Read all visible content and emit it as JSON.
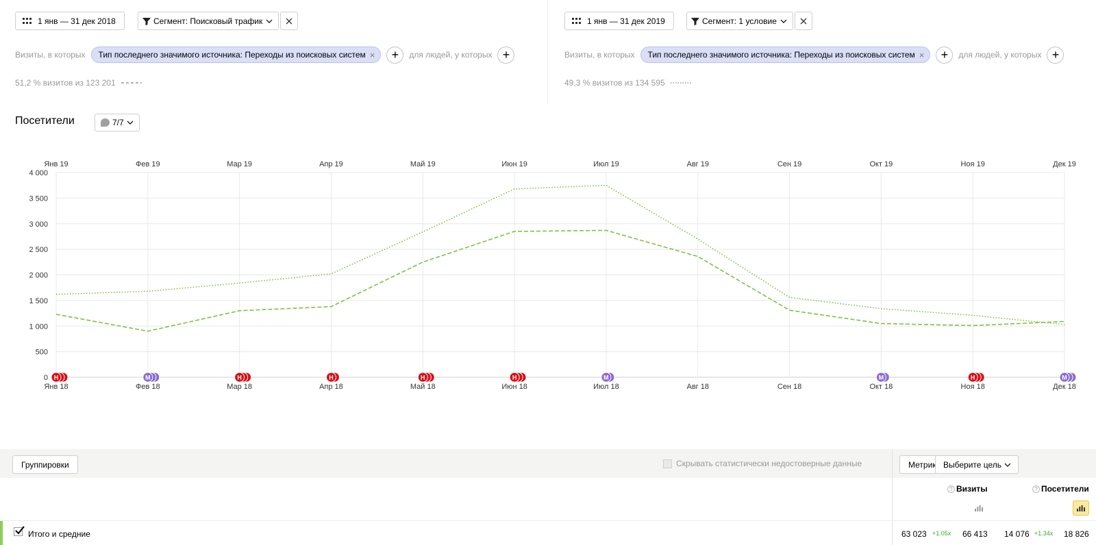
{
  "segments": [
    {
      "date_range": "1 янв — 31 дек 2018",
      "segment_label": "Сегмент: Поисковый трафик",
      "visits_prefix": "Визиты, в которых",
      "condition_chip": "Тип последнего значимого источника: Переходы из поисковых систем",
      "people_label": "для людей, у которых",
      "stat": "51,2 % визитов из 123 201",
      "line_style": "dashed"
    },
    {
      "date_range": "1 янв — 31 дек 2019",
      "segment_label": "Сегмент: 1 условие",
      "visits_prefix": "Визиты, в которых",
      "condition_chip": "Тип последнего значимого источника: Переходы из поисковых систем",
      "people_label": "для людей, у которых",
      "stat": "49,3 % визитов из 134 595",
      "line_style": "dotted"
    }
  ],
  "chart_header": {
    "title": "Посетители",
    "notes_count": "7/7"
  },
  "chart_data": {
    "type": "line",
    "x_top": [
      "Янв 19",
      "Фев 19",
      "Мар 19",
      "Апр 19",
      "Май 19",
      "Июн 19",
      "Июл 19",
      "Авг 19",
      "Сен 19",
      "Окт 19",
      "Ноя 19",
      "Дек 19"
    ],
    "x_bottom": [
      "Янв 18",
      "Фев 18",
      "Мар 18",
      "Апр 18",
      "Май 18",
      "Июн 18",
      "Июл 18",
      "Авг 18",
      "Сен 18",
      "Окт 18",
      "Ноя 18",
      "Дек 18"
    ],
    "y_ticks": [
      "0",
      "500",
      "1 000",
      "1 500",
      "2 000",
      "2 500",
      "3 000",
      "3 500",
      "4 000"
    ],
    "ylim": [
      0,
      4000
    ],
    "grid": true,
    "series": [
      {
        "values": [
          1230,
          900,
          1300,
          1380,
          2250,
          2850,
          2870,
          2360,
          1310,
          1050,
          1010,
          1090
        ],
        "style": "dashed",
        "color": "#7cc242"
      },
      {
        "values": [
          1620,
          1680,
          1840,
          2020,
          2840,
          3680,
          3750,
          2700,
          1560,
          1340,
          1210,
          1030
        ],
        "style": "dotted",
        "color": "#7cc242"
      }
    ],
    "annotations": [
      {
        "index": 0,
        "letter": "Н",
        "count": 3,
        "color": "#d80f16"
      },
      {
        "index": 1,
        "letter": "М",
        "count": 3,
        "color": "#8a6bd0"
      },
      {
        "index": 2,
        "letter": "Н",
        "count": 3,
        "color": "#d80f16"
      },
      {
        "index": 3,
        "letter": "Н",
        "count": 2,
        "color": "#d80f16"
      },
      {
        "index": 4,
        "letter": "Н",
        "count": 3,
        "color": "#d80f16"
      },
      {
        "index": 5,
        "letter": "Н",
        "count": 3,
        "color": "#d80f16"
      },
      {
        "index": 6,
        "letter": "М",
        "count": 2,
        "color": "#8a6bd0"
      },
      {
        "index": 9,
        "letter": "М",
        "count": 2,
        "color": "#8a6bd0"
      },
      {
        "index": 10,
        "letter": "Н",
        "count": 3,
        "color": "#d80f16"
      },
      {
        "index": 11,
        "letter": "М",
        "count": 3,
        "color": "#8a6bd0"
      }
    ]
  },
  "toolbar": {
    "groupings": "Группировки",
    "hide_unreliable": "Скрывать статистически недостоверные данные",
    "metrics": "Метрики",
    "choose_goal": "Выберите цель"
  },
  "table": {
    "columns": [
      {
        "label": "Визиты",
        "help": "?"
      },
      {
        "label": "Посетители",
        "help": "?"
      }
    ],
    "total_row": {
      "label": "Итого и средние",
      "visits_a": "63 023",
      "visits_ratio": "+1.05x",
      "visits_b": "66 413",
      "visitors_a": "14 076",
      "visitors_ratio": "+1.34x",
      "visitors_b": "18 826"
    }
  }
}
